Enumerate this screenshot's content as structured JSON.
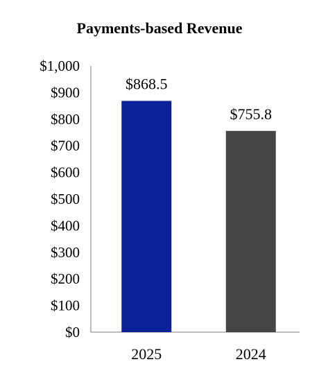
{
  "chart_data": {
    "type": "bar",
    "title": "Payments-based Revenue",
    "xlabel": "",
    "ylabel": "",
    "categories": [
      "2025",
      "2024"
    ],
    "values": [
      868.5,
      755.8
    ],
    "data_labels": [
      "$868.5",
      "$755.8"
    ],
    "bar_colors": [
      "#0c2299",
      "#454545"
    ],
    "ylim": [
      0,
      1000
    ],
    "yticks": [
      0,
      100,
      200,
      300,
      400,
      500,
      600,
      700,
      800,
      900,
      1000
    ],
    "ytick_labels": [
      "$0",
      "$100",
      "$200",
      "$300",
      "$400",
      "$500",
      "$600",
      "$700",
      "$800",
      "$900",
      "$1,000"
    ],
    "grid": false,
    "legend": "none"
  }
}
